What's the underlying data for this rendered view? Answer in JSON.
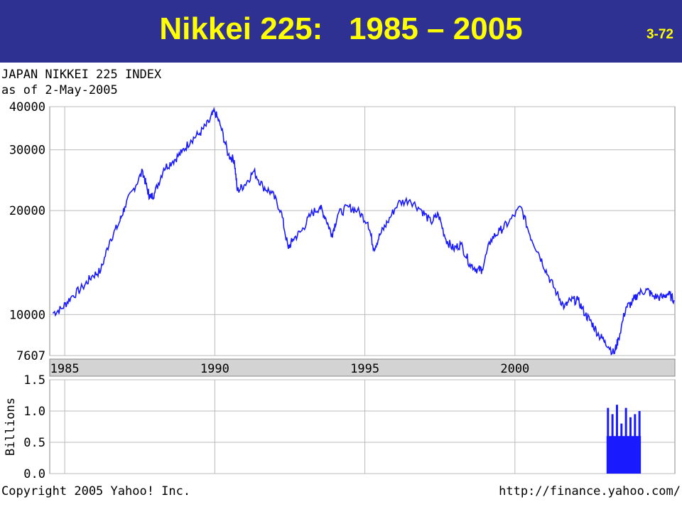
{
  "slide": {
    "title": "Nikkei 225:   1985 – 2005",
    "number": "3-72"
  },
  "colors": {
    "title_bar": "#2e3192",
    "title_text": "#ffff00",
    "price_line": "#1a1aff",
    "volume_bars": "#1a1aff",
    "grid": "#bbbbbb",
    "axis_band": "#d3d3d3"
  },
  "chart_data": [
    {
      "type": "line",
      "title": "JAPAN NIKKEI 225 INDEX",
      "subtitle": "as of 2-May-2005",
      "yscale": "log",
      "ylim": [
        7607,
        40000
      ],
      "yticks": [
        40000,
        30000,
        20000,
        10000,
        7607
      ],
      "xlim": [
        1984.5,
        2005.33
      ],
      "xticks": [
        1985,
        1990,
        1995,
        2000
      ],
      "grid": true,
      "series": [
        {
          "x": [
            1984.6,
            1984.9,
            1985.2,
            1985.6,
            1985.9,
            1986.2,
            1986.5,
            1986.8,
            1987.0,
            1987.3,
            1987.6,
            1987.75,
            1987.85,
            1988.0,
            1988.3,
            1988.6,
            1988.9,
            1989.2,
            1989.5,
            1989.8,
            1989.99,
            1990.2,
            1990.45,
            1990.65,
            1990.75,
            1991.0,
            1991.3,
            1991.6,
            1991.9,
            1992.2,
            1992.45,
            1992.6,
            1992.9,
            1993.2,
            1993.5,
            1993.7,
            1993.9,
            1994.1,
            1994.45,
            1994.75,
            1995.1,
            1995.3,
            1995.5,
            1995.75,
            1996.1,
            1996.5,
            1996.9,
            1997.2,
            1997.45,
            1997.7,
            1997.95,
            1998.2,
            1998.5,
            1998.75,
            1998.9,
            1999.2,
            1999.5,
            1999.8,
            2000.2,
            2000.5,
            2000.8,
            2001.1,
            2001.4,
            2001.65,
            2001.85,
            2002.1,
            2002.35,
            2002.55,
            2002.8,
            2003.0,
            2003.3,
            2003.45,
            2003.7,
            2003.9,
            2004.1,
            2004.4,
            2004.6,
            2004.9,
            2005.1,
            2005.3
          ],
          "values": [
            10100,
            10400,
            11200,
            12000,
            12900,
            13400,
            16400,
            18300,
            20500,
            23200,
            26000,
            23000,
            21800,
            22500,
            26500,
            27800,
            29500,
            32000,
            33500,
            36000,
            38900,
            35000,
            29000,
            28000,
            22800,
            23800,
            26000,
            23500,
            22500,
            20000,
            15500,
            16500,
            17500,
            19500,
            20500,
            19000,
            17000,
            19500,
            20500,
            20000,
            18500,
            15500,
            17000,
            18500,
            21000,
            21500,
            20000,
            18500,
            19500,
            16500,
            15500,
            16000,
            14000,
            13500,
            13500,
            16500,
            17500,
            18500,
            20500,
            17000,
            15000,
            13000,
            11500,
            10500,
            11000,
            11000,
            10000,
            9500,
            8700,
            8400,
            7700,
            8500,
            10500,
            10800,
            11500,
            11800,
            11300,
            11200,
            11500,
            11000
          ]
        }
      ]
    },
    {
      "type": "bar",
      "ylabel": "Billions",
      "ylim": [
        0,
        1.5
      ],
      "yticks": [
        "1.5",
        "1.0",
        "0.5",
        "0.0"
      ],
      "grid": true,
      "series": [
        {
          "x": [
            2003.1,
            2003.25,
            2003.4,
            2003.55,
            2003.7,
            2003.85,
            2004.0,
            2004.15
          ],
          "values": [
            1.05,
            0.95,
            1.1,
            0.8,
            1.05,
            0.9,
            0.95,
            1.0
          ]
        }
      ]
    }
  ],
  "footer": {
    "copyright": "Copyright 2005 Yahoo! Inc.",
    "url": "http://finance.yahoo.com/"
  }
}
